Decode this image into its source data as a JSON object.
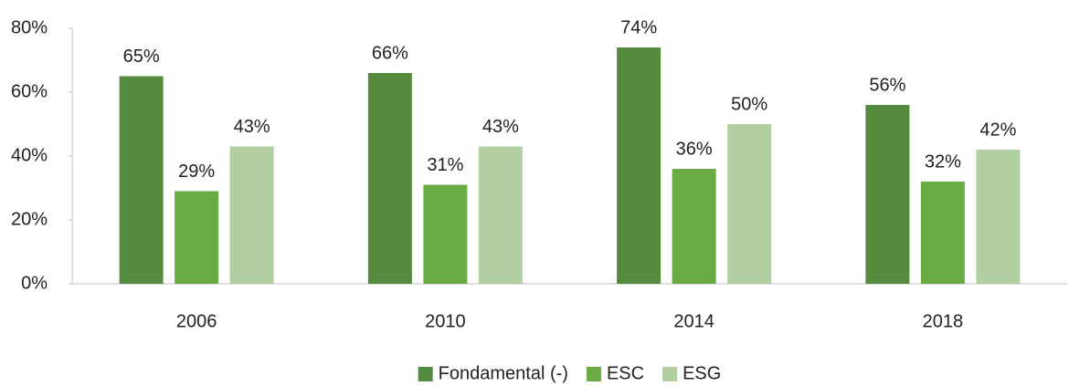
{
  "chart_data": {
    "type": "bar",
    "categories": [
      "2006",
      "2010",
      "2014",
      "2018"
    ],
    "series": [
      {
        "name": "Fondamental (-)",
        "color": "#548b3f",
        "values": [
          65,
          66,
          74,
          56
        ],
        "value_labels": [
          "65%",
          "66%",
          "74%",
          "56%"
        ]
      },
      {
        "name": "ESC",
        "color": "#6aab45",
        "values": [
          29,
          31,
          36,
          32
        ],
        "value_labels": [
          "29%",
          "31%",
          "36%",
          "32%"
        ]
      },
      {
        "name": "ESG",
        "color": "#b1cfa1",
        "values": [
          43,
          43,
          50,
          42
        ],
        "value_labels": [
          "43%",
          "43%",
          "50%",
          "42%"
        ]
      }
    ],
    "ylim": [
      0,
      80
    ],
    "yticks": [
      {
        "value": 0,
        "label": "0%"
      },
      {
        "value": 20,
        "label": "20%"
      },
      {
        "value": 40,
        "label": "40%"
      },
      {
        "value": 60,
        "label": "60%"
      },
      {
        "value": 80,
        "label": "80%"
      }
    ],
    "grid": false,
    "legend": "bottom"
  }
}
